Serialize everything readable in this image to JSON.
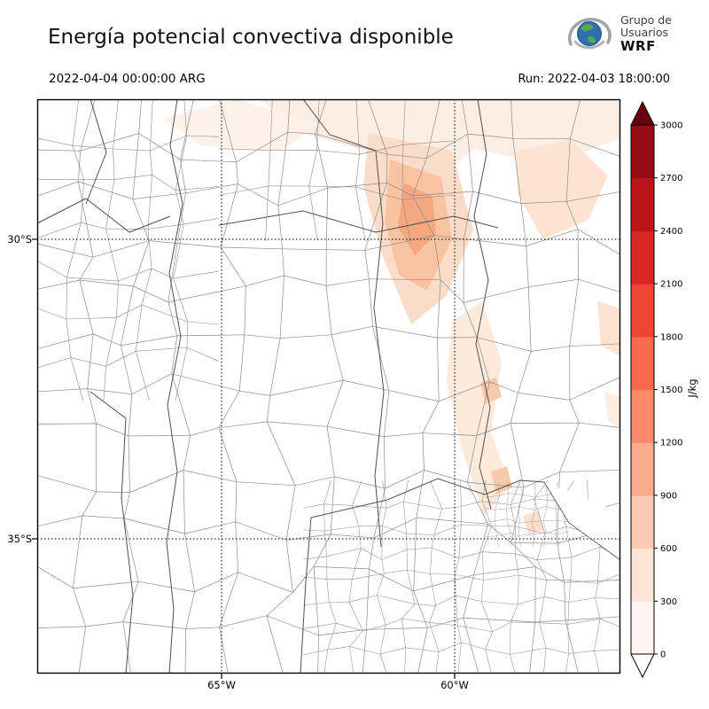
{
  "header": {
    "title": "Energía potencial convectiva disponible",
    "logo": {
      "line1": "Grupo de",
      "line2": "Usuarios",
      "line3": "WRF"
    },
    "valid_time": "2022-04-04 00:00:00 ARG",
    "run_label": "Run: 2022-04-03 18:00:00"
  },
  "axes": {
    "y_ticks": [
      {
        "label": "30°S"
      },
      {
        "label": "35°S"
      }
    ],
    "x_ticks": [
      {
        "label": "65°W"
      },
      {
        "label": "60°W"
      }
    ]
  },
  "colorbar": {
    "label": "J/kg",
    "ticks": [
      "0",
      "300",
      "600",
      "900",
      "1200",
      "1500",
      "1800",
      "2100",
      "2400",
      "2700",
      "3000"
    ],
    "band_colors": [
      "#fff5f0",
      "#fee3d6",
      "#fdc9b3",
      "#fcab8f",
      "#fc8a6b",
      "#f9694c",
      "#ef4533",
      "#d92723",
      "#bb151a",
      "#970b13"
    ],
    "under_color": "#ffffff",
    "over_color": "#67000d"
  },
  "chart_data": {
    "type": "heatmap",
    "title": "Energía potencial convectiva disponible",
    "variable": "CAPE",
    "units": "J/kg",
    "levels": [
      0,
      300,
      600,
      900,
      1200,
      1500,
      1800,
      2100,
      2400,
      2700,
      3000
    ],
    "colormap": "Reds",
    "valid_time": "2022-04-04 00:00:00 ARG",
    "run_time": "2022-04-03 18:00:00",
    "x_axis": {
      "ticks": [
        "65°W",
        "60°W"
      ]
    },
    "y_axis": {
      "ticks": [
        "30°S",
        "35°S"
      ]
    },
    "legend_position": "right vertical colorbar with extend arrows at both ends",
    "field_summary": [
      {
        "region": "north-central lobe near ~63°W 28°S",
        "value_range_jkg": "300-900"
      },
      {
        "region": "broad band across northern edge and northeast corner",
        "value_range_jkg": "0-300"
      },
      {
        "region": "strip along ~61°W between 30°S and 33°S",
        "value_range_jkg": "0-600"
      },
      {
        "region": "remainder of domain",
        "value_range_jkg": "0"
      }
    ]
  }
}
